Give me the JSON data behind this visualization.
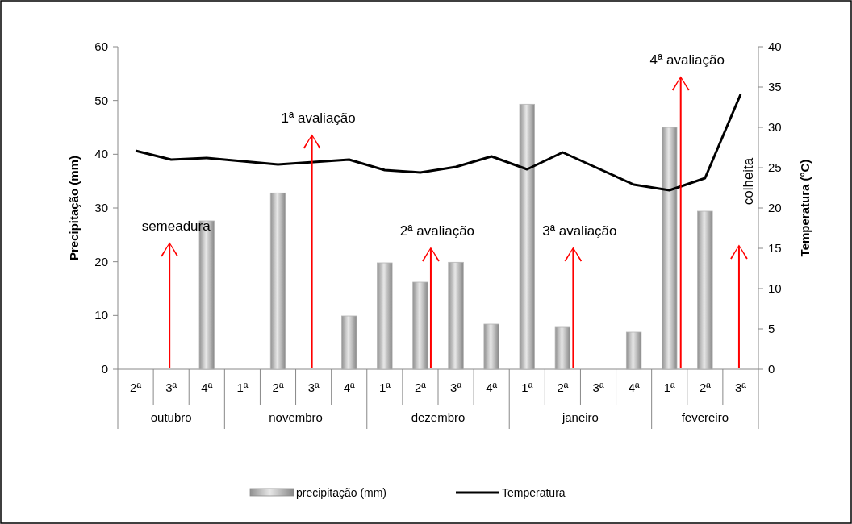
{
  "chart_data": {
    "type": "bar",
    "ylabel": "Precipitação (mm)",
    "y2label": "Temperatura (°C)",
    "categories": [
      "2ª",
      "3ª",
      "4ª",
      "1ª",
      "2ª",
      "3ª",
      "4ª",
      "1ª",
      "2ª",
      "3ª",
      "4ª",
      "1ª",
      "2ª",
      "3ª",
      "4ª",
      "1ª",
      "2ª",
      "3ª"
    ],
    "series": [
      {
        "name": "precipitação (mm)",
        "color": "#b4b4b4",
        "values": [
          null,
          null,
          27.6,
          null,
          32.8,
          null,
          9.9,
          19.8,
          16.2,
          19.9,
          8.4,
          49.3,
          7.8,
          null,
          6.9,
          45,
          29.4,
          null
        ]
      },
      {
        "name": "Temperatura",
        "type": "line",
        "axis": "y2",
        "color": "#000000",
        "values": [
          27.1,
          26.0,
          26.2,
          25.8,
          25.4,
          25.7,
          26.0,
          24.7,
          24.4,
          25.1,
          26.4,
          24.8,
          26.9,
          24.9,
          22.9,
          22.2,
          23.7,
          34.1
        ]
      }
    ],
    "ylim": [
      0,
      60
    ],
    "yticks": [
      0,
      10,
      20,
      30,
      40,
      50,
      60
    ],
    "y2lim": [
      0,
      40
    ],
    "y2ticks": [
      0,
      5,
      10,
      15,
      20,
      25,
      30,
      35,
      40
    ],
    "legend": "bottom",
    "annotations": [
      "outubro",
      "novembro",
      "dezembro",
      "janeiro",
      "fevereiro",
      "semeadura",
      "1ª avaliação",
      "2ª avaliação",
      "3ª avaliação",
      "4ª avaliação",
      "colheita"
    ]
  }
}
